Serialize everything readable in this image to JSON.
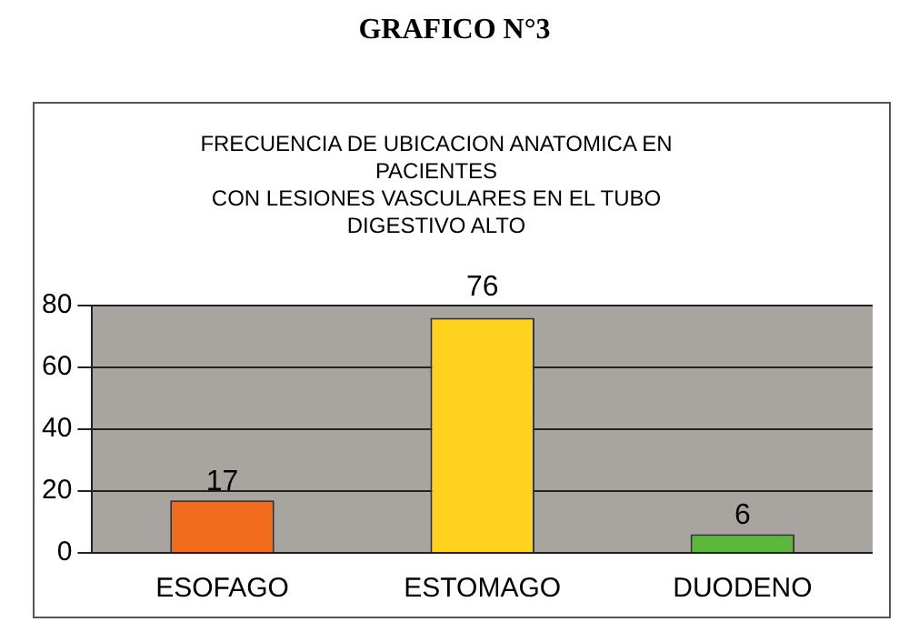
{
  "chart_data": {
    "type": "bar",
    "title": "GRAFICO N°3",
    "subtitle": "FRECUENCIA DE UBICACION ANATOMICA EN\nPACIENTES\nCON LESIONES VASCULARES EN EL TUBO\nDIGESTIVO ALTO",
    "categories": [
      "ESOFAGO",
      "ESTOMAGO",
      "DUODENO"
    ],
    "values": [
      17,
      76,
      6
    ],
    "colors": [
      "#f26a1b",
      "#ffd21e",
      "#5cb83a"
    ],
    "ylim": [
      0,
      80
    ],
    "yticks": [
      0,
      20,
      40,
      60,
      80
    ],
    "grid": "y",
    "data_labels": true,
    "legend": false
  }
}
